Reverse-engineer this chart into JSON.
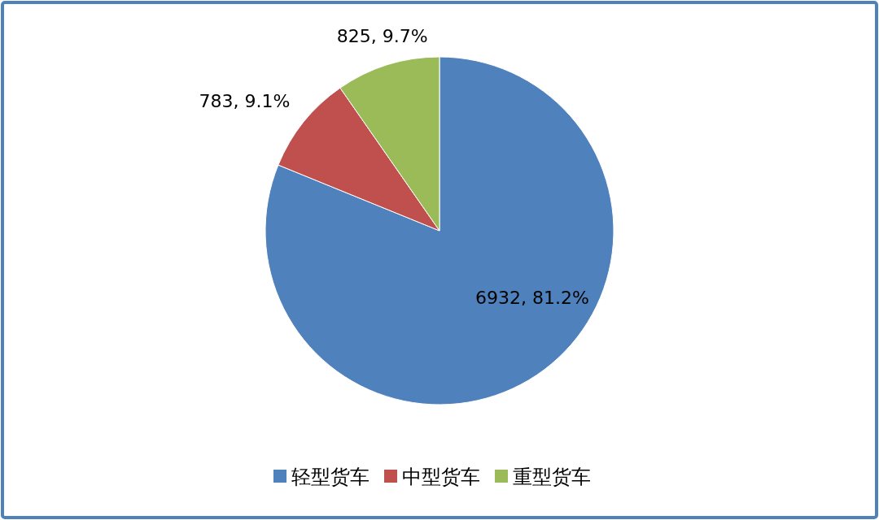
{
  "chart_data": {
    "type": "pie",
    "categories": [
      "轻型货车",
      "中型货车",
      "重型货车"
    ],
    "values": [
      6932,
      783,
      825
    ],
    "colors": [
      "#4f81bd",
      "#c0504d",
      "#9bbb59"
    ],
    "value_labels": [
      "6932, 81.2%",
      "783, 9.1%",
      "825, 9.7%"
    ],
    "legend": "bottom"
  }
}
